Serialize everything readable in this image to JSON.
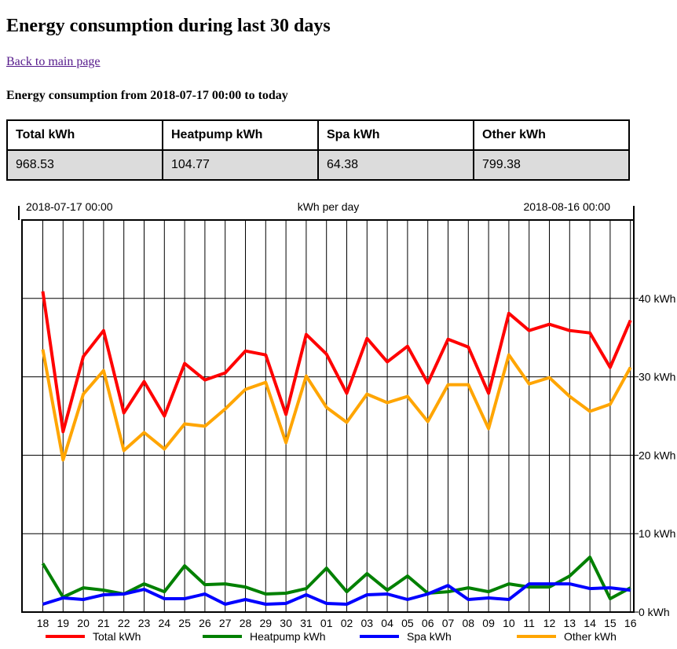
{
  "page": {
    "title": "Energy consumption during last 30 days",
    "back_link": "Back to main page",
    "subtitle": "Energy consumption from 2018-07-17 00:00 to today"
  },
  "summary": {
    "headers": [
      "Total kWh",
      "Heatpump kWh",
      "Spa kWh",
      "Other kWh"
    ],
    "values": [
      "968.53",
      "104.77",
      "64.38",
      "799.38"
    ]
  },
  "chart_data": {
    "type": "line",
    "title": "kWh per day",
    "start_label": "2018-07-17 00:00",
    "end_label": "2018-08-16 00:00",
    "categories": [
      "18",
      "19",
      "20",
      "21",
      "22",
      "23",
      "24",
      "25",
      "26",
      "27",
      "28",
      "29",
      "30",
      "31",
      "01",
      "02",
      "03",
      "04",
      "05",
      "06",
      "07",
      "08",
      "09",
      "10",
      "11",
      "12",
      "13",
      "14",
      "15",
      "16"
    ],
    "yticks": [
      0,
      10,
      20,
      30,
      40
    ],
    "ytick_labels": [
      "0 kWh",
      "10 kWh",
      "20 kWh",
      "30 kWh",
      "40 kWh"
    ],
    "ylim": [
      0,
      50
    ],
    "grid": true,
    "legend_position": "bottom",
    "series": [
      {
        "name": "Total kWh",
        "color": "#ff0000",
        "values": [
          40.9,
          23.0,
          32.6,
          35.9,
          25.4,
          29.4,
          25.0,
          31.7,
          29.6,
          30.5,
          33.3,
          32.8,
          25.2,
          35.4,
          32.9,
          27.9,
          34.9,
          31.9,
          33.9,
          29.2,
          34.8,
          33.8,
          27.9,
          38.1,
          35.9,
          36.7,
          35.9,
          35.6,
          31.2,
          37.2
        ]
      },
      {
        "name": "Heatpump kWh",
        "color": "#008000",
        "values": [
          6.2,
          1.9,
          3.1,
          2.8,
          2.3,
          3.6,
          2.6,
          5.9,
          3.5,
          3.6,
          3.2,
          2.3,
          2.4,
          3.0,
          5.6,
          2.6,
          4.9,
          2.8,
          4.6,
          2.4,
          2.6,
          3.1,
          2.6,
          3.6,
          3.2,
          3.2,
          4.6,
          7.0,
          1.7,
          3.1
        ]
      },
      {
        "name": "Spa kWh",
        "color": "#0000ff",
        "values": [
          1.0,
          1.8,
          1.6,
          2.2,
          2.3,
          2.9,
          1.7,
          1.7,
          2.3,
          1.0,
          1.6,
          1.0,
          1.1,
          2.2,
          1.1,
          1.0,
          2.2,
          2.3,
          1.6,
          2.3,
          3.4,
          1.6,
          1.8,
          1.6,
          3.6,
          3.6,
          3.6,
          3.0,
          3.1,
          2.8
        ]
      },
      {
        "name": "Other kWh",
        "color": "#ffa500",
        "values": [
          33.5,
          19.4,
          27.8,
          30.8,
          20.6,
          22.9,
          20.8,
          24.0,
          23.7,
          25.9,
          28.4,
          29.3,
          21.6,
          30.1,
          26.1,
          24.2,
          27.8,
          26.7,
          27.5,
          24.3,
          29.0,
          29.0,
          23.4,
          32.8,
          29.1,
          29.9,
          27.5,
          25.6,
          26.5,
          31.2
        ]
      }
    ]
  }
}
